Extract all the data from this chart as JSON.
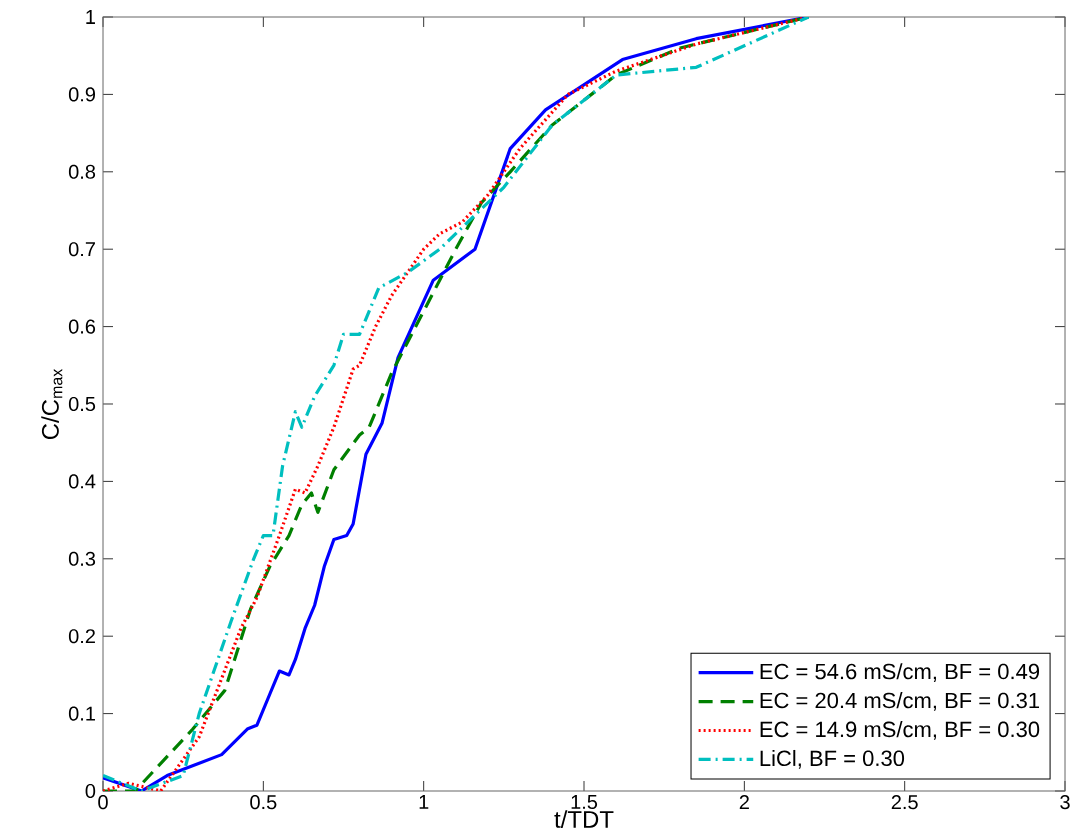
{
  "chart_data": {
    "type": "line",
    "xlabel": "t/TDT",
    "ylabel": "C/C$_{max}$",
    "xlim": [
      0,
      3
    ],
    "ylim": [
      0,
      1
    ],
    "xticks": [
      0,
      0.5,
      1,
      1.5,
      2,
      2.5,
      3
    ],
    "yticks": [
      0,
      0.1,
      0.2,
      0.3,
      0.4,
      0.5,
      0.6,
      0.7,
      0.8,
      0.9,
      1
    ],
    "legend": "bottom right",
    "grid": false,
    "series": [
      {
        "name": "EC = 54.6 mS/cm, BF = 0.49",
        "color": "#0000ff",
        "line_style": "solid",
        "x": [
          0,
          0.12,
          0.2,
          0.37,
          0.45,
          0.48,
          0.52,
          0.55,
          0.58,
          0.6,
          0.63,
          0.66,
          0.69,
          0.72,
          0.76,
          0.78,
          0.82,
          0.87,
          0.92,
          1.03,
          1.16,
          1.27,
          1.38,
          1.62,
          1.85,
          2.2
        ],
        "values": [
          0.017,
          0,
          0.02,
          0.047,
          0.08,
          0.085,
          0.125,
          0.155,
          0.15,
          0.17,
          0.21,
          0.24,
          0.29,
          0.325,
          0.33,
          0.345,
          0.435,
          0.475,
          0.56,
          0.66,
          0.7,
          0.83,
          0.88,
          0.945,
          0.972,
          1
        ]
      },
      {
        "name": "EC = 20.4 mS/cm, BF = 0.31",
        "color": "#008000",
        "line_style": "dashed",
        "x": [
          0,
          0.1,
          0.28,
          0.38,
          0.46,
          0.52,
          0.58,
          0.62,
          0.65,
          0.67,
          0.72,
          0.8,
          0.83,
          0.9,
          1.0,
          1.1,
          1.18,
          1.27,
          1.4,
          1.6,
          1.8,
          2.2
        ],
        "values": [
          0,
          0,
          0.08,
          0.13,
          0.235,
          0.29,
          0.33,
          0.37,
          0.385,
          0.36,
          0.415,
          0.46,
          0.47,
          0.54,
          0.62,
          0.7,
          0.76,
          0.8,
          0.86,
          0.925,
          0.96,
          1
        ]
      },
      {
        "name": "EC = 14.9 mS/cm, BF = 0.30",
        "color": "#ff0000",
        "line_style": "dotted",
        "x": [
          0,
          0.08,
          0.18,
          0.3,
          0.43,
          0.48,
          0.55,
          0.6,
          0.63,
          0.67,
          0.72,
          0.78,
          0.8,
          0.85,
          0.9,
          1.0,
          1.05,
          1.12,
          1.2,
          1.3,
          1.45,
          1.6,
          1.85,
          2.2
        ],
        "values": [
          0,
          0.01,
          0,
          0.07,
          0.21,
          0.25,
          0.33,
          0.39,
          0.385,
          0.42,
          0.47,
          0.545,
          0.55,
          0.6,
          0.64,
          0.7,
          0.72,
          0.735,
          0.77,
          0.83,
          0.9,
          0.93,
          0.965,
          1
        ]
      },
      {
        "name": "LiCl, BF = 0.30",
        "color": "#00bfbf",
        "line_style": "dashdot",
        "x": [
          0,
          0.12,
          0.25,
          0.3,
          0.4,
          0.47,
          0.5,
          0.53,
          0.56,
          0.6,
          0.62,
          0.66,
          0.72,
          0.75,
          0.8,
          0.86,
          0.95,
          1.05,
          1.15,
          1.25,
          1.4,
          1.6,
          1.85,
          2.2
        ],
        "values": [
          0.02,
          0,
          0.02,
          0.1,
          0.22,
          0.3,
          0.33,
          0.33,
          0.42,
          0.49,
          0.47,
          0.51,
          0.55,
          0.59,
          0.59,
          0.65,
          0.67,
          0.7,
          0.74,
          0.78,
          0.86,
          0.925,
          0.935,
          1
        ]
      }
    ]
  }
}
